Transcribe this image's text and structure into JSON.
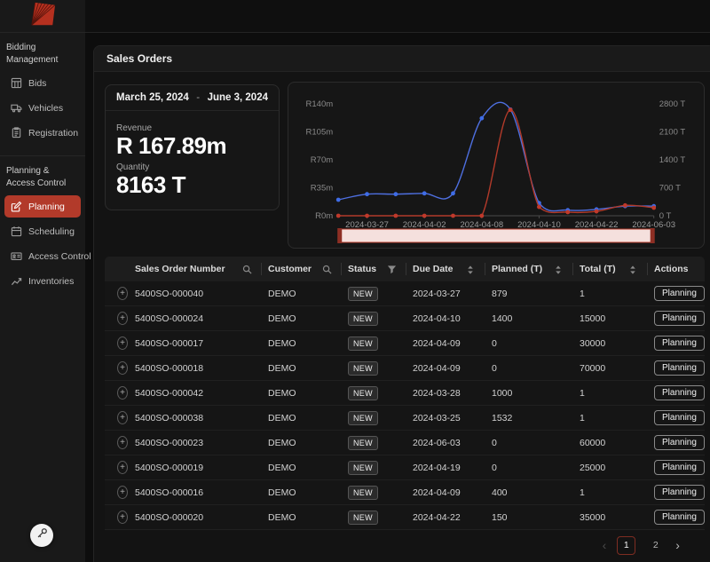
{
  "app": {
    "logo": "fan-logo"
  },
  "sidebar": {
    "sections": [
      {
        "label": "Bidding Management",
        "items": [
          {
            "label": "Bids",
            "icon": "bids-icon",
            "active": false
          },
          {
            "label": "Vehicles",
            "icon": "vehicles-icon",
            "active": false
          },
          {
            "label": "Registration",
            "icon": "registration-icon",
            "active": false
          }
        ]
      },
      {
        "label": "Planning & Access Control",
        "items": [
          {
            "label": "Planning",
            "icon": "planning-icon",
            "active": true
          },
          {
            "label": "Scheduling",
            "icon": "scheduling-icon",
            "active": false
          },
          {
            "label": "Access Control",
            "icon": "access-control-icon",
            "active": false
          },
          {
            "label": "Inventories",
            "icon": "inventories-icon",
            "active": false
          }
        ]
      }
    ],
    "floating_button_icon": "key-icon"
  },
  "page": {
    "title": "Sales Orders"
  },
  "summary": {
    "date_from": "March 25, 2024",
    "date_separator": "-",
    "date_to": "June 3, 2024",
    "revenue_label": "Revenue",
    "revenue_value": "R 167.89m",
    "quantity_label": "Quantity",
    "quantity_value": "8163 T"
  },
  "chart_data": {
    "type": "line",
    "title": "",
    "x_labels": [
      "2024-03-27",
      "2024-04-02",
      "2024-04-08",
      "2024-04-10",
      "2024-04-22",
      "2024-06-03"
    ],
    "x_label_point_indices": [
      1,
      3,
      5,
      7,
      9,
      11
    ],
    "series": [
      {
        "name": "Revenue",
        "axis": "left",
        "color": "#4e6fe0",
        "dot_color": "#3f6ce6",
        "values": [
          20,
          27,
          27,
          28,
          28,
          122,
          133,
          16,
          7,
          8,
          12,
          12
        ]
      },
      {
        "name": "Quantity",
        "axis": "right",
        "color": "#b23a2a",
        "dot_color": "#c0392b",
        "values": [
          0,
          0,
          0,
          0,
          0,
          0,
          2650,
          220,
          90,
          110,
          260,
          200
        ]
      }
    ],
    "left_axis": {
      "ticks": [
        "R140m",
        "R105m",
        "R70m",
        "R35m",
        "R0m"
      ],
      "min": 0,
      "max": 140
    },
    "right_axis": {
      "ticks": [
        "2800 T",
        "2100 T",
        "1400 T",
        "700 T",
        "0 T"
      ],
      "min": 0,
      "max": 2800
    },
    "grid": false,
    "legend": "none",
    "brush": {
      "fill": "#f5e0dd",
      "border": "#b23a2a",
      "handle_color": "#8e2f24"
    }
  },
  "table": {
    "columns": [
      {
        "label": "",
        "icon": null
      },
      {
        "label": "Sales Order Number",
        "icon": "search-icon"
      },
      {
        "label": "Customer",
        "icon": "search-icon"
      },
      {
        "label": "Status",
        "icon": "filter-icon"
      },
      {
        "label": "Due Date",
        "icon": "sort-icon"
      },
      {
        "label": "Planned (T)",
        "icon": "sort-icon"
      },
      {
        "label": "Total (T)",
        "icon": "sort-icon"
      },
      {
        "label": "Actions",
        "icon": null
      }
    ],
    "rows": [
      {
        "sales_order_number": "5400SO-000040",
        "customer": "DEMO",
        "status": "NEW",
        "due_date": "2024-03-27",
        "planned": "879",
        "total": "1",
        "action": "Planning"
      },
      {
        "sales_order_number": "5400SO-000024",
        "customer": "DEMO",
        "status": "NEW",
        "due_date": "2024-04-10",
        "planned": "1400",
        "total": "15000",
        "action": "Planning"
      },
      {
        "sales_order_number": "5400SO-000017",
        "customer": "DEMO",
        "status": "NEW",
        "due_date": "2024-04-09",
        "planned": "0",
        "total": "30000",
        "action": "Planning"
      },
      {
        "sales_order_number": "5400SO-000018",
        "customer": "DEMO",
        "status": "NEW",
        "due_date": "2024-04-09",
        "planned": "0",
        "total": "70000",
        "action": "Planning"
      },
      {
        "sales_order_number": "5400SO-000042",
        "customer": "DEMO",
        "status": "NEW",
        "due_date": "2024-03-28",
        "planned": "1000",
        "total": "1",
        "action": "Planning"
      },
      {
        "sales_order_number": "5400SO-000038",
        "customer": "DEMO",
        "status": "NEW",
        "due_date": "2024-03-25",
        "planned": "1532",
        "total": "1",
        "action": "Planning"
      },
      {
        "sales_order_number": "5400SO-000023",
        "customer": "DEMO",
        "status": "NEW",
        "due_date": "2024-06-03",
        "planned": "0",
        "total": "60000",
        "action": "Planning"
      },
      {
        "sales_order_number": "5400SO-000019",
        "customer": "DEMO",
        "status": "NEW",
        "due_date": "2024-04-19",
        "planned": "0",
        "total": "25000",
        "action": "Planning"
      },
      {
        "sales_order_number": "5400SO-000016",
        "customer": "DEMO",
        "status": "NEW",
        "due_date": "2024-04-09",
        "planned": "400",
        "total": "1",
        "action": "Planning"
      },
      {
        "sales_order_number": "5400SO-000020",
        "customer": "DEMO",
        "status": "NEW",
        "due_date": "2024-04-22",
        "planned": "150",
        "total": "35000",
        "action": "Planning"
      }
    ],
    "expand_glyph": "+"
  },
  "pagination": {
    "prev": "‹",
    "pages": [
      "1",
      "2"
    ],
    "current": "1",
    "next": "›"
  },
  "colors": {
    "accent": "#b23a2a",
    "revenue_line": "#4e6fe0",
    "quantity_line": "#b23a2a",
    "brush_fill": "#f5e0dd"
  }
}
